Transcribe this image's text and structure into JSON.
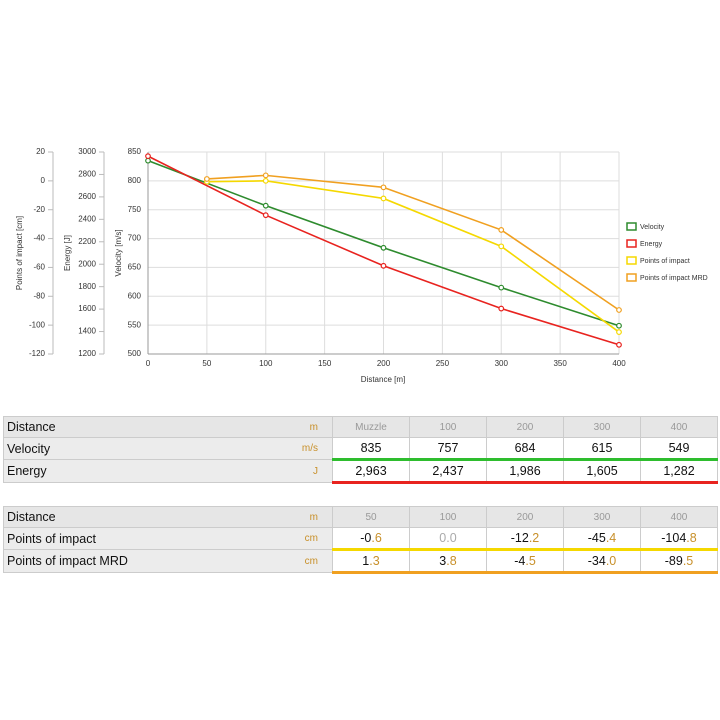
{
  "chart_data": {
    "type": "line",
    "xlabel": "Distance [m]",
    "xlim": [
      0,
      400
    ],
    "xticks": [
      0,
      50,
      100,
      150,
      200,
      250,
      300,
      350,
      400
    ],
    "y_axes": [
      {
        "label": "Velocity [m/s]",
        "lim": [
          500,
          850
        ],
        "ticks": [
          500,
          550,
          600,
          650,
          700,
          750,
          800,
          850
        ]
      },
      {
        "label": "Energy [J]",
        "lim": [
          1200,
          3000
        ],
        "ticks": [
          1200,
          1400,
          1600,
          1800,
          2000,
          2200,
          2400,
          2600,
          2800,
          3000
        ]
      },
      {
        "label": "Points of impact [cm]",
        "lim": [
          -120,
          20
        ],
        "ticks": [
          -120,
          -100,
          -80,
          -60,
          -40,
          -20,
          0,
          20
        ]
      }
    ],
    "series": [
      {
        "name": "Velocity",
        "color": "#2e8b2e",
        "axis": 0,
        "x": [
          0,
          100,
          200,
          300,
          400
        ],
        "values": [
          835,
          757,
          684,
          615,
          549
        ]
      },
      {
        "name": "Energy",
        "color": "#e8231f",
        "axis": 1,
        "x": [
          0,
          100,
          200,
          300,
          400
        ],
        "values": [
          2963,
          2437,
          1986,
          1605,
          1282
        ]
      },
      {
        "name": "Points of impact",
        "color": "#f5d800",
        "axis": 2,
        "x": [
          50,
          100,
          200,
          300,
          400
        ],
        "values": [
          -0.6,
          0.0,
          -12.2,
          -45.4,
          -104.8
        ]
      },
      {
        "name": "Points of impact MRD",
        "color": "#f0a020",
        "axis": 2,
        "x": [
          50,
          100,
          200,
          300,
          400
        ],
        "values": [
          1.3,
          3.8,
          -4.5,
          -34.0,
          -89.5
        ]
      }
    ],
    "grid": true
  },
  "tables": [
    {
      "header": {
        "label": "Distance",
        "unit": "m",
        "cells": [
          "Muzzle",
          "100",
          "200",
          "300",
          "400"
        ]
      },
      "rows": [
        {
          "label": "Velocity",
          "unit": "m/s",
          "color": "#2ebd2e",
          "cells": [
            "835",
            "757",
            "684",
            "615",
            "549"
          ]
        },
        {
          "label": "Energy",
          "unit": "J",
          "color": "#e8231f",
          "cells": [
            "2,963",
            "2,437",
            "1,986",
            "1,605",
            "1,282"
          ]
        }
      ]
    },
    {
      "header": {
        "label": "Distance",
        "unit": "m",
        "cells": [
          "50",
          "100",
          "200",
          "300",
          "400"
        ]
      },
      "rows": [
        {
          "label": "Points of impact",
          "unit": "cm",
          "color": "#f5d800",
          "cells": [
            "-0.6",
            "0.0",
            "-12.2",
            "-45.4",
            "-104.8"
          ]
        },
        {
          "label": "Points of impact MRD",
          "unit": "cm",
          "color": "#f0a020",
          "cells": [
            "1.3",
            "3.8",
            "-4.5",
            "-34.0",
            "-89.5"
          ]
        }
      ]
    }
  ]
}
